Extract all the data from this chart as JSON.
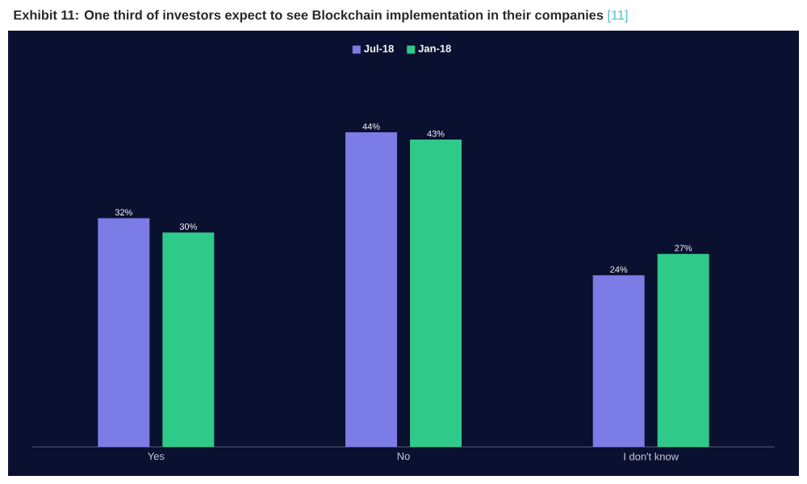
{
  "chart_data": {
    "type": "bar",
    "title": "Exhibit 11: One third of investors expect to see Blockchain implementation in their companies",
    "annotations": [
      "[11]"
    ],
    "categories": [
      "Yes",
      "No",
      "I don't know"
    ],
    "series": [
      {
        "name": "Jul-18",
        "color": "#7b7ce6",
        "values": [
          32,
          44,
          24
        ],
        "value_labels": [
          "32%",
          "44%",
          "24%"
        ]
      },
      {
        "name": "Jan-18",
        "color": "#2fc98a",
        "values": [
          30,
          43,
          27
        ],
        "value_labels": [
          "30%",
          "43%",
          "27%"
        ]
      }
    ],
    "legend": "top"
  }
}
